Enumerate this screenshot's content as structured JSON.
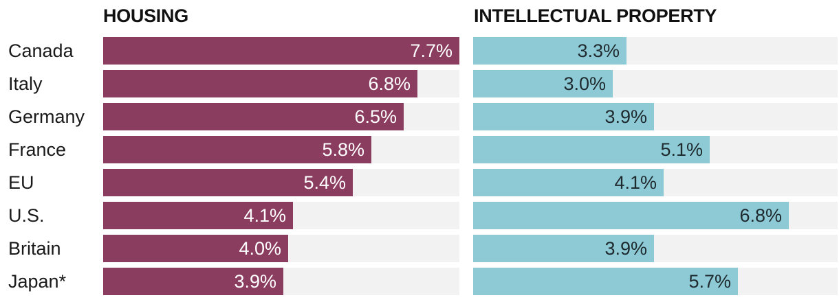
{
  "chart_data": [
    {
      "type": "bar",
      "orientation": "horizontal",
      "title": "HOUSING",
      "categories": [
        "Canada",
        "Italy",
        "Germany",
        "France",
        "EU",
        "U.S.",
        "Britain",
        "Japan*"
      ],
      "values": [
        7.7,
        6.8,
        6.5,
        5.8,
        5.4,
        4.1,
        4.0,
        3.9
      ],
      "labels": [
        "7.7%",
        "6.8%",
        "6.5%",
        "5.8%",
        "5.4%",
        "4.1%",
        "4.0%",
        "3.9%"
      ],
      "unit": "%",
      "xlim": [
        0,
        7.7
      ],
      "color": "#8b3d60",
      "track_color": "#f2f2f2"
    },
    {
      "type": "bar",
      "orientation": "horizontal",
      "title": "INTELLECTUAL PROPERTY",
      "categories": [
        "Canada",
        "Italy",
        "Germany",
        "France",
        "EU",
        "U.S.",
        "Britain",
        "Japan*"
      ],
      "values": [
        3.3,
        3.0,
        3.9,
        5.1,
        4.1,
        6.8,
        3.9,
        5.7
      ],
      "labels": [
        "3.3%",
        "3.0%",
        "3.9%",
        "5.1%",
        "4.1%",
        "6.8%",
        "3.9%",
        "5.7%"
      ],
      "unit": "%",
      "xlim": [
        0,
        7.85
      ],
      "color": "#8ecad5",
      "track_color": "#f2f2f2"
    }
  ]
}
